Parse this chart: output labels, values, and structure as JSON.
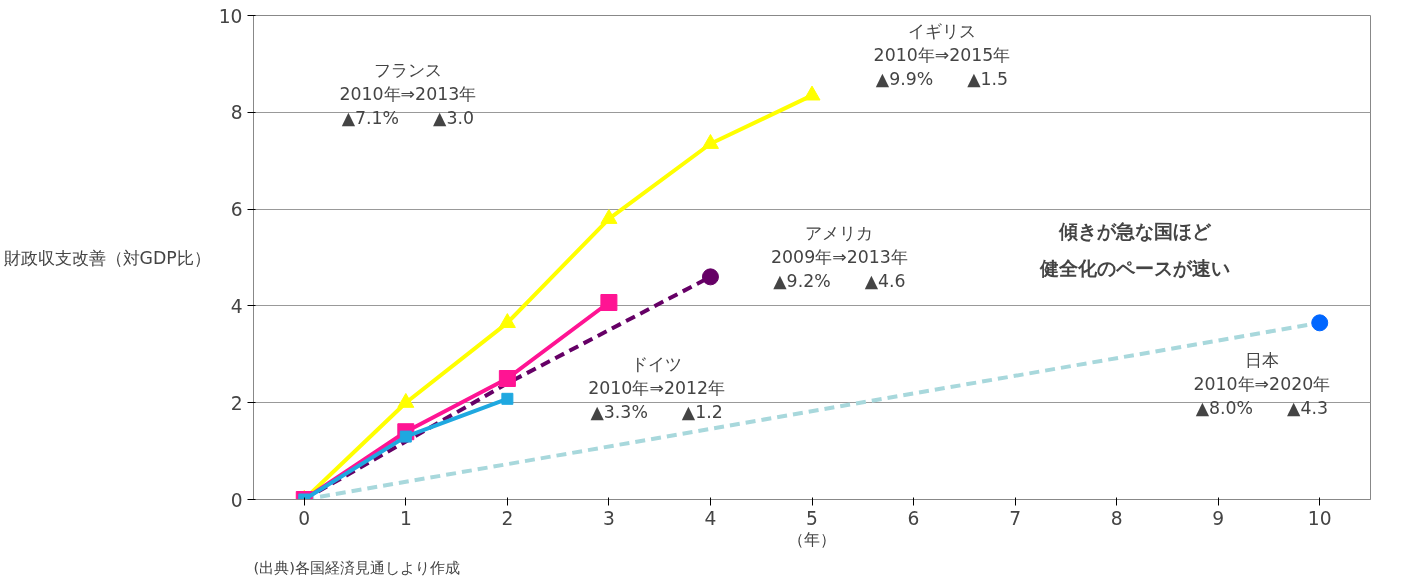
{
  "chart_data": {
    "type": "line",
    "ylabel": "財政収支改善（対GDP比）",
    "xlabel": "（年）",
    "x": [
      0,
      1,
      2,
      3,
      4,
      5
    ],
    "series": [
      {
        "color": "#ffff00",
        "marker": "triangle",
        "line_style": "solid",
        "values": [
          0,
          2.0,
          3.65,
          5.8,
          7.35,
          8.35
        ]
      },
      {
        "color": "#660066",
        "marker": "none",
        "line_style": "dashed",
        "values": [
          0,
          1.2,
          2.4,
          3.5,
          4.6,
          null
        ]
      },
      {
        "type": "scatter",
        "color": "#660066",
        "marker": "circle",
        "x": [
          4
        ],
        "values": [
          4.6
        ]
      },
      {
        "color": "#a8d8dc",
        "marker": "none",
        "line_style": "dashed",
        "x": [
          0,
          10
        ],
        "values": [
          0,
          3.65
        ]
      },
      {
        "type": "scatter",
        "color": "#0066ff",
        "marker": "circle",
        "x": [
          10
        ],
        "values": [
          3.65
        ]
      },
      {
        "color": "#ff1493",
        "marker": "square",
        "line_style": "solid",
        "values": [
          0,
          1.4,
          2.5,
          4.07,
          null,
          null
        ]
      },
      {
        "color": "#1fa8e0",
        "marker": "square",
        "line_style": "solid",
        "values": [
          0,
          1.3,
          2.08,
          null,
          null,
          null
        ]
      }
    ],
    "xlim": [
      -0.5,
      10.5
    ],
    "ylim": [
      0,
      10
    ],
    "xticks": [
      0,
      1,
      2,
      3,
      4,
      5,
      6,
      7,
      8,
      9,
      10
    ],
    "yticks": [
      0,
      2,
      4,
      6,
      8,
      10
    ],
    "grid": "y",
    "annotations": [
      "フランス\n2010年⇒2013年\n▲7.1%　　▲3.0",
      "イギリス\n2010年⇒2015年\n▲9.9%　　▲1.5",
      "アメリカ\n2009年⇒2013年\n▲9.2%　　▲4.6",
      "ドイツ\n2010年⇒2012年\n▲3.3%　　▲1.2",
      "日本\n2010年⇒2020年\n▲8.0%　　▲4.3",
      "傾きが急な国ほど",
      "健全化のペースが速い",
      "(出典)各国経済見通しより作成"
    ]
  }
}
